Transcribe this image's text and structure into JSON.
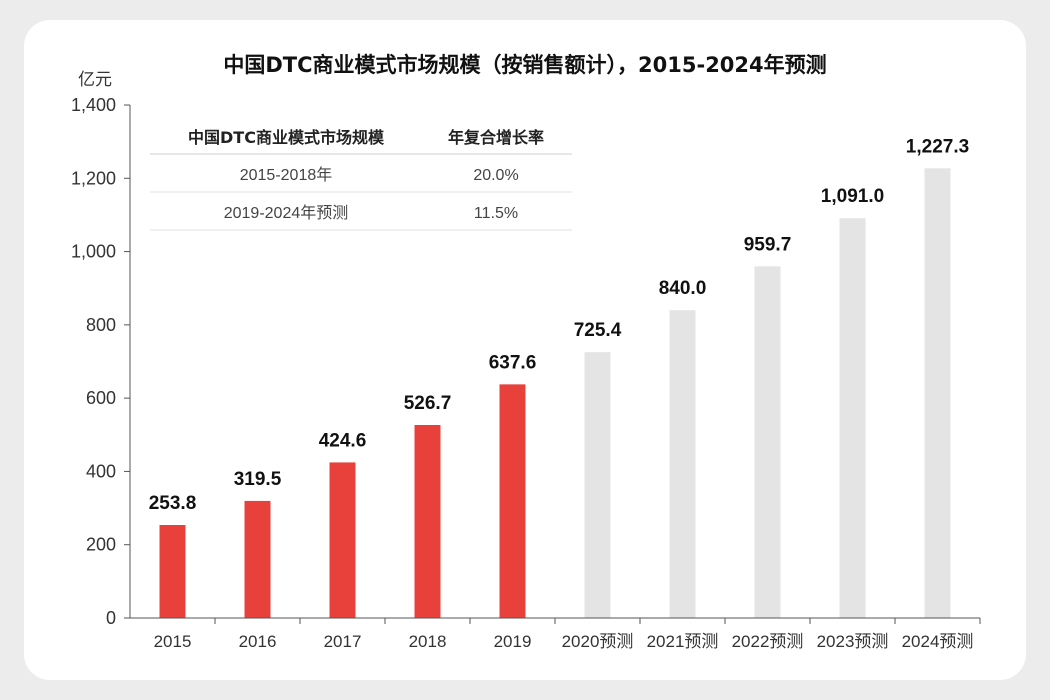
{
  "chart_data": {
    "type": "bar",
    "title": "中国DTC商业模式市场规模（按销售额计），2015-2024年预测",
    "ylabel": "亿元",
    "ylim": [
      0,
      1400
    ],
    "yticks": [
      "0",
      "200",
      "400",
      "600",
      "800",
      "1,000",
      "1,200",
      "1,400"
    ],
    "categories": [
      "2015",
      "2016",
      "2017",
      "2018",
      "2019",
      "2020预测",
      "2021预测",
      "2022预测",
      "2023预测",
      "2024预测"
    ],
    "values": [
      253.8,
      319.5,
      424.6,
      526.7,
      637.6,
      725.4,
      840.0,
      959.7,
      1091.0,
      1227.3
    ],
    "value_labels": [
      "253.8",
      "319.5",
      "424.6",
      "526.7",
      "637.6",
      "725.4",
      "840.0",
      "959.7",
      "1,091.0",
      "1,227.3"
    ],
    "bar_types": [
      "actual",
      "actual",
      "actual",
      "actual",
      "actual",
      "forecast",
      "forecast",
      "forecast",
      "forecast",
      "forecast"
    ],
    "colors": {
      "actual": "#e8413c",
      "forecast": "#e4e4e4"
    },
    "grid": false,
    "inset_table": {
      "headers": [
        "中国DTC商业模式市场规模",
        "年复合增长率"
      ],
      "rows": [
        [
          "2015-2018年",
          "20.0%"
        ],
        [
          "2019-2024年预测",
          "11.5%"
        ]
      ]
    }
  }
}
